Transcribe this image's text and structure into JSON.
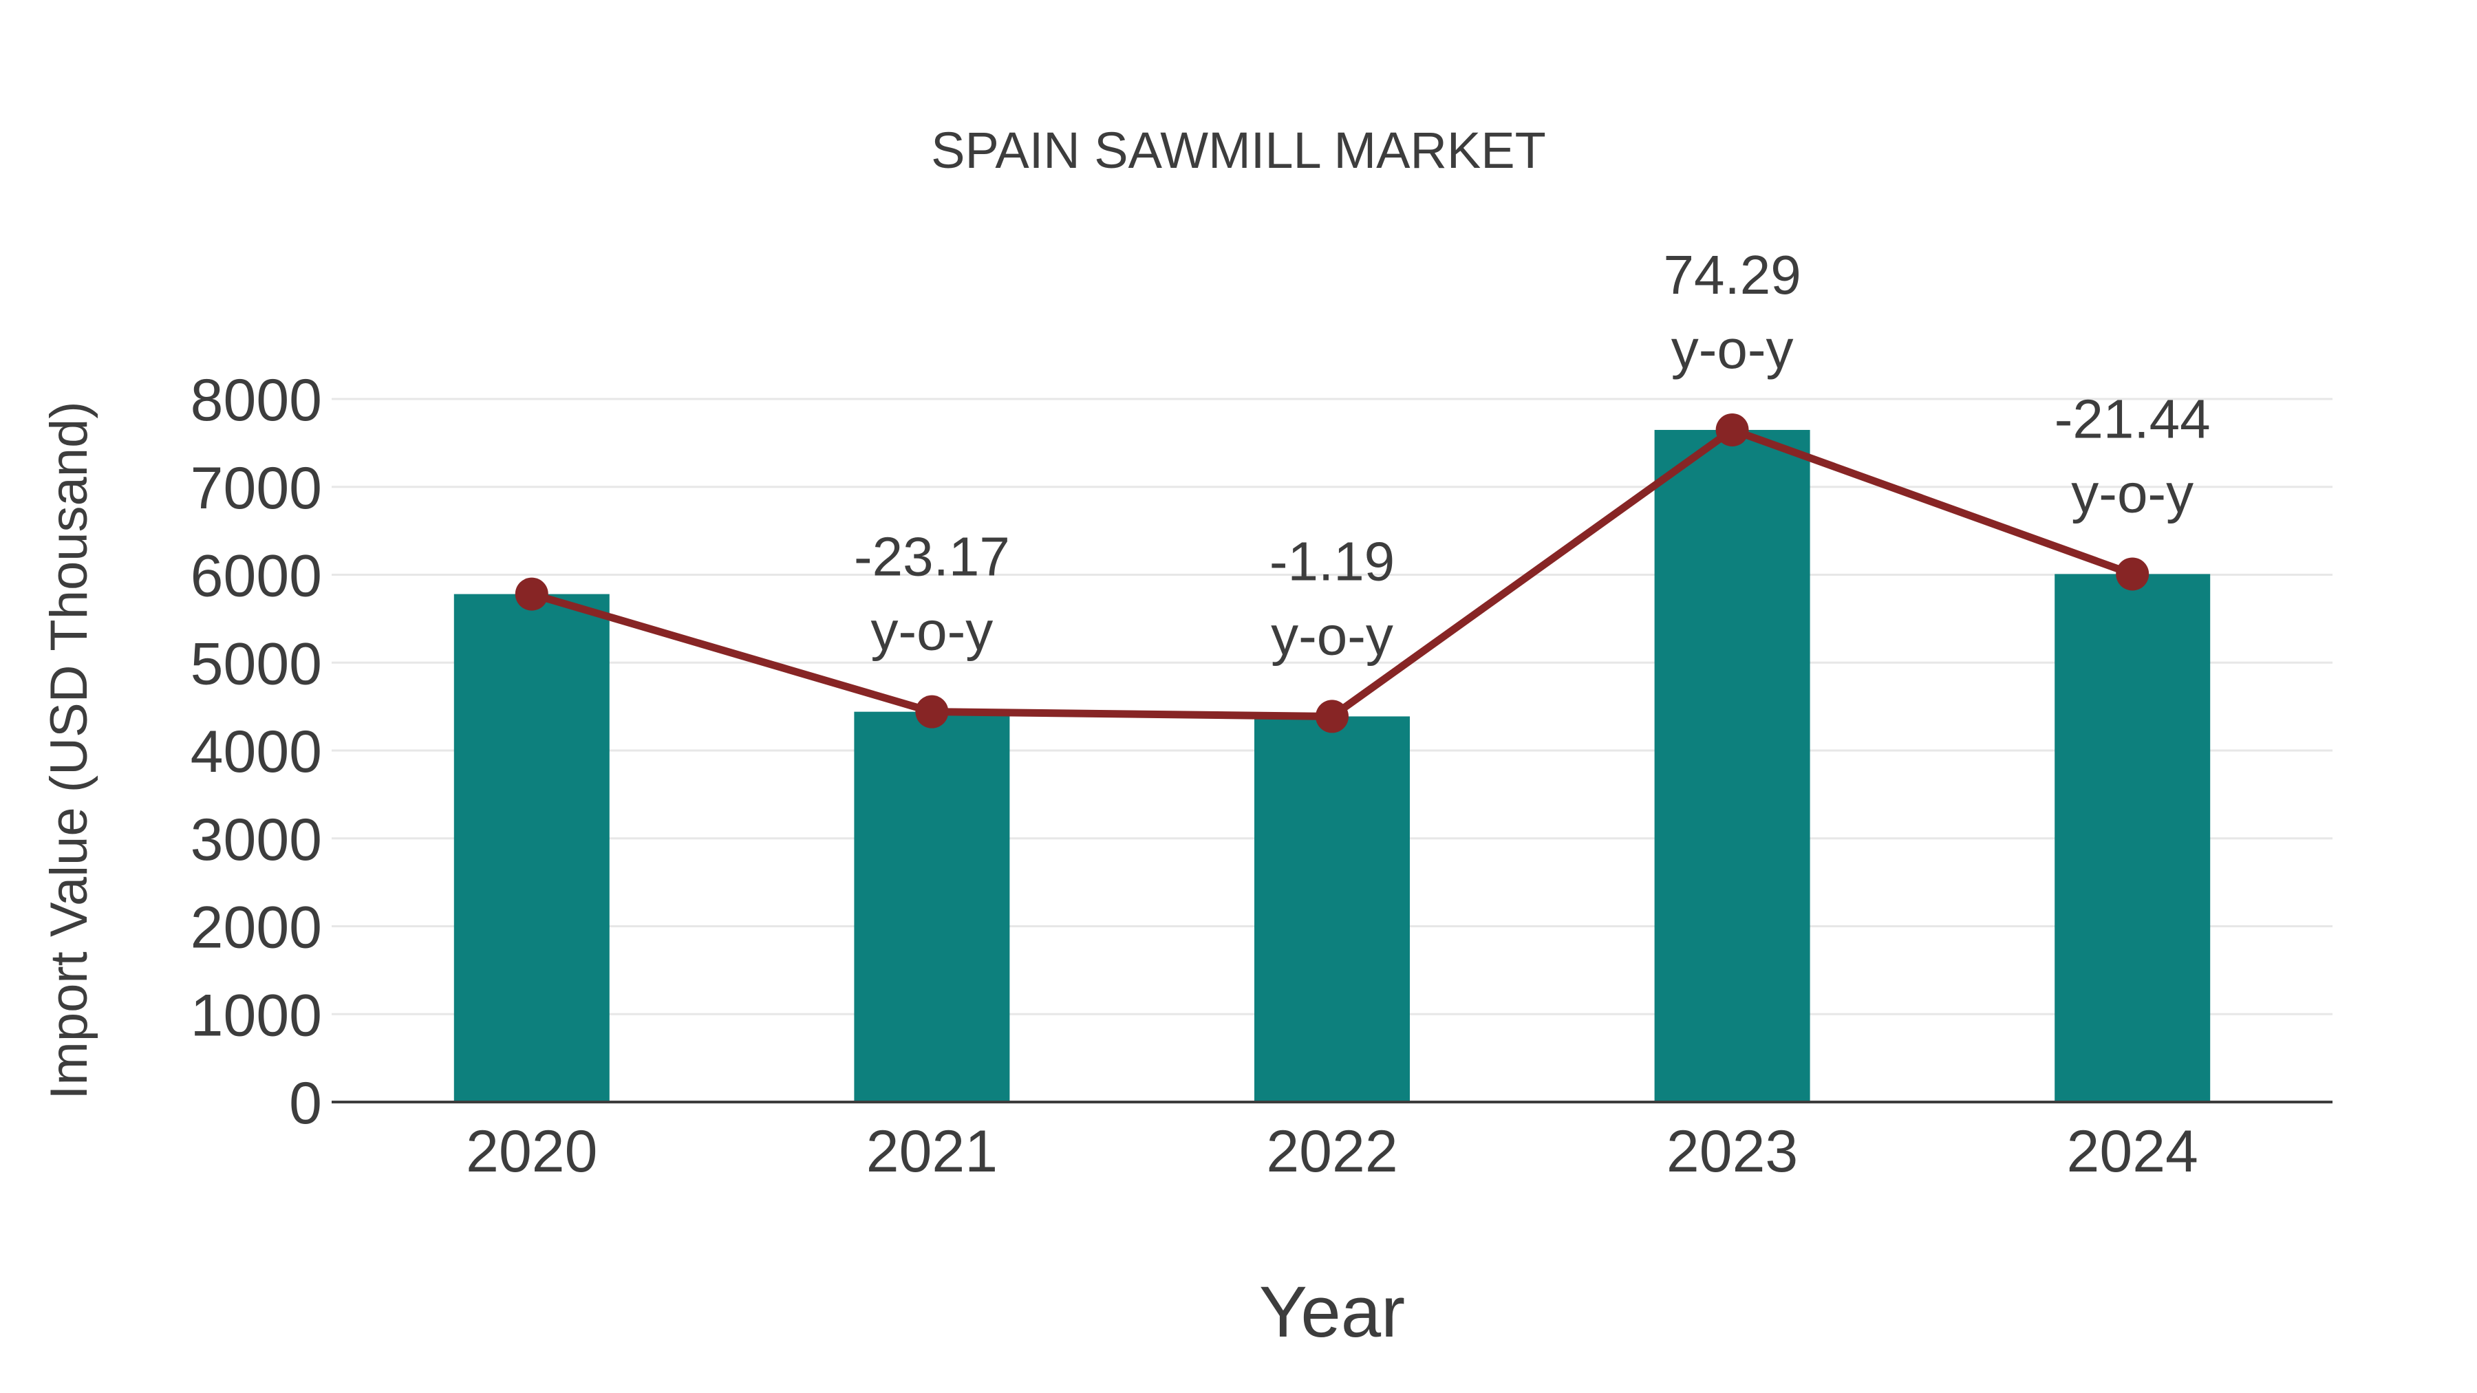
{
  "chart": {
    "title": "SPAIN SAWMILL MARKET",
    "xlabel": "Year",
    "ylabel": "Import Value (USD Thousand)"
  },
  "colors": {
    "bar": "#0d807d",
    "line": "#872525",
    "marker": "#872525",
    "text": "#3d3d3d",
    "grid": "#e7e7e7",
    "axis": "#3d3d3d",
    "background": "#ffffff"
  },
  "chart_data": {
    "type": "bar",
    "title": "SPAIN SAWMILL MARKET",
    "xlabel": "Year",
    "ylabel": "Import Value (USD Thousand)",
    "categories": [
      "2020",
      "2021",
      "2022",
      "2023",
      "2024"
    ],
    "series": [
      {
        "name": "Import Value (USD Thousand)",
        "type": "bar",
        "values": [
          5780,
          4441,
          4388,
          7648,
          6008
        ]
      },
      {
        "name": "Import Value trend",
        "type": "line",
        "values": [
          5780,
          4441,
          4388,
          7648,
          6008
        ]
      }
    ],
    "annotations": [
      {
        "category": "2021",
        "lines": [
          "-23.17",
          "y-o-y"
        ]
      },
      {
        "category": "2022",
        "lines": [
          "-1.19",
          "y-o-y"
        ]
      },
      {
        "category": "2023",
        "lines": [
          "74.29",
          "y-o-y"
        ]
      },
      {
        "category": "2024",
        "lines": [
          "-21.44",
          "y-o-y"
        ]
      }
    ],
    "ylim": [
      0,
      8000
    ],
    "yticks": [
      0,
      1000,
      2000,
      3000,
      4000,
      5000,
      6000,
      7000,
      8000
    ],
    "grid": "horizontal",
    "legend": "none"
  }
}
